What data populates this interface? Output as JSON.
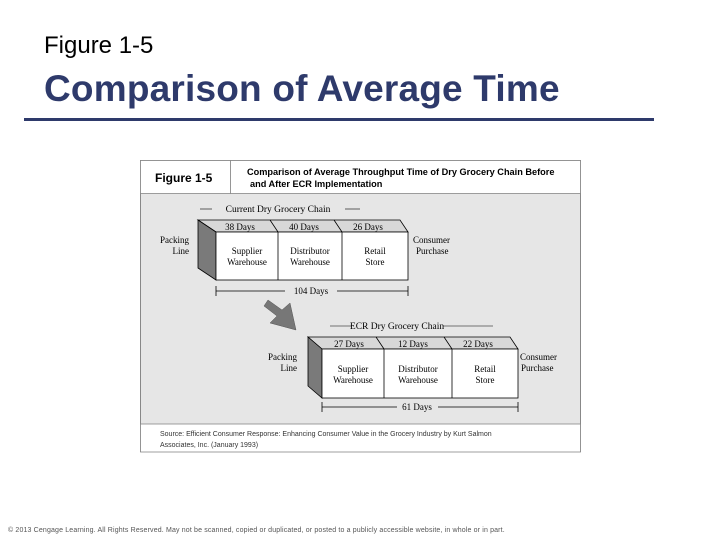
{
  "slide": {
    "figure_label": "Figure 1-5",
    "title": "Comparison of Average Time",
    "copyright": "© 2013 Cengage Learning. All Rights Reserved. May not be scanned, copied or duplicated, or posted to a publicly accessible website, in whole or in part."
  },
  "figure": {
    "header_label": "Figure 1-5",
    "caption_line1": "Comparison of Average Throughput Time of Dry Grocery Chain Before",
    "caption_line2": "and After ECR Implementation",
    "current_chain": {
      "title": "Current Dry Grocery Chain",
      "start_label_1": "Packing",
      "start_label_2": "Line",
      "end_label_1": "Consumer",
      "end_label_2": "Purchase",
      "segments": [
        {
          "days": "38 Days",
          "name_1": "Supplier",
          "name_2": "Warehouse"
        },
        {
          "days": "40 Days",
          "name_1": "Distributor",
          "name_2": "Warehouse"
        },
        {
          "days": "26 Days",
          "name_1": "Retail",
          "name_2": "Store"
        }
      ],
      "total": "104 Days"
    },
    "ecr_chain": {
      "title": "ECR Dry Grocery Chain",
      "start_label_1": "Packing",
      "start_label_2": "Line",
      "end_label_1": "Consumer",
      "end_label_2": "Purchase",
      "segments": [
        {
          "days": "27 Days",
          "name_1": "Supplier",
          "name_2": "Warehouse"
        },
        {
          "days": "12 Days",
          "name_1": "Distributor",
          "name_2": "Warehouse"
        },
        {
          "days": "22 Days",
          "name_1": "Retail",
          "name_2": "Store"
        }
      ],
      "total": "61 Days"
    },
    "source_line1": "Source: Efficient Consumer Response: Enhancing Consumer Value in the Grocery Industry by Kurt Salmon",
    "source_line2": "Associates, Inc. (January 1993)",
    "colors": {
      "panel_bg": "#e6e6e6",
      "box_fill": "#ffffff",
      "side_face": "#7a7a7a",
      "top_face": "#d0d0d0",
      "arrow": "#777777",
      "title_color": "#2e3a6b"
    }
  }
}
